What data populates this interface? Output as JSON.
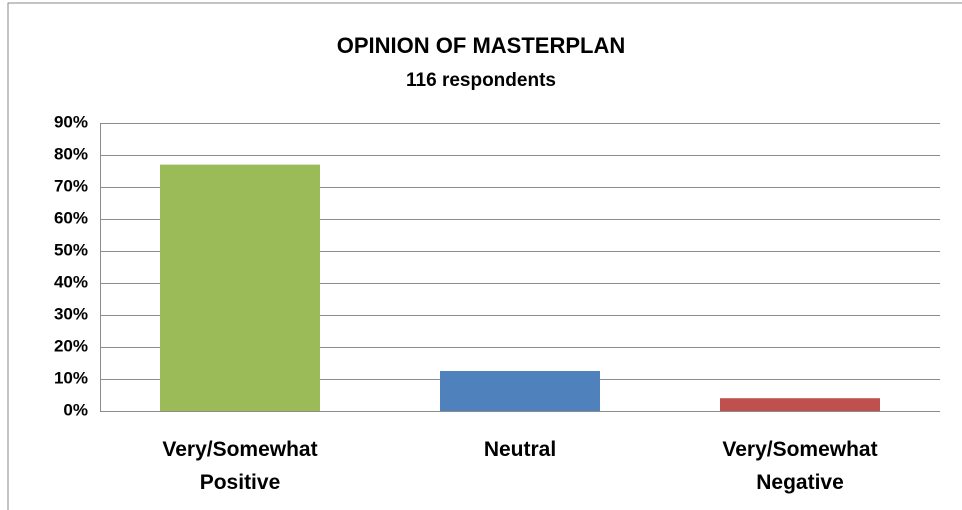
{
  "chart_data": {
    "type": "bar",
    "title": "OPINION OF MASTERPLAN",
    "subtitle": "116 respondents",
    "categories": [
      "Very/Somewhat Positive",
      "Neutral",
      "Very/Somewhat Negative"
    ],
    "values": [
      77,
      12.5,
      4
    ],
    "colors": [
      "#9bbb59",
      "#4f81bd",
      "#c0504d"
    ],
    "ylim": [
      0,
      90
    ],
    "yticks": [
      {
        "value": 0,
        "label": "0%"
      },
      {
        "value": 10,
        "label": "10%"
      },
      {
        "value": 20,
        "label": "20%"
      },
      {
        "value": 30,
        "label": "30%"
      },
      {
        "value": 40,
        "label": "40%"
      },
      {
        "value": 50,
        "label": "50%"
      },
      {
        "value": 60,
        "label": "60%"
      },
      {
        "value": 70,
        "label": "70%"
      },
      {
        "value": 80,
        "label": "80%"
      },
      {
        "value": 90,
        "label": "90%"
      }
    ],
    "grid": true
  }
}
